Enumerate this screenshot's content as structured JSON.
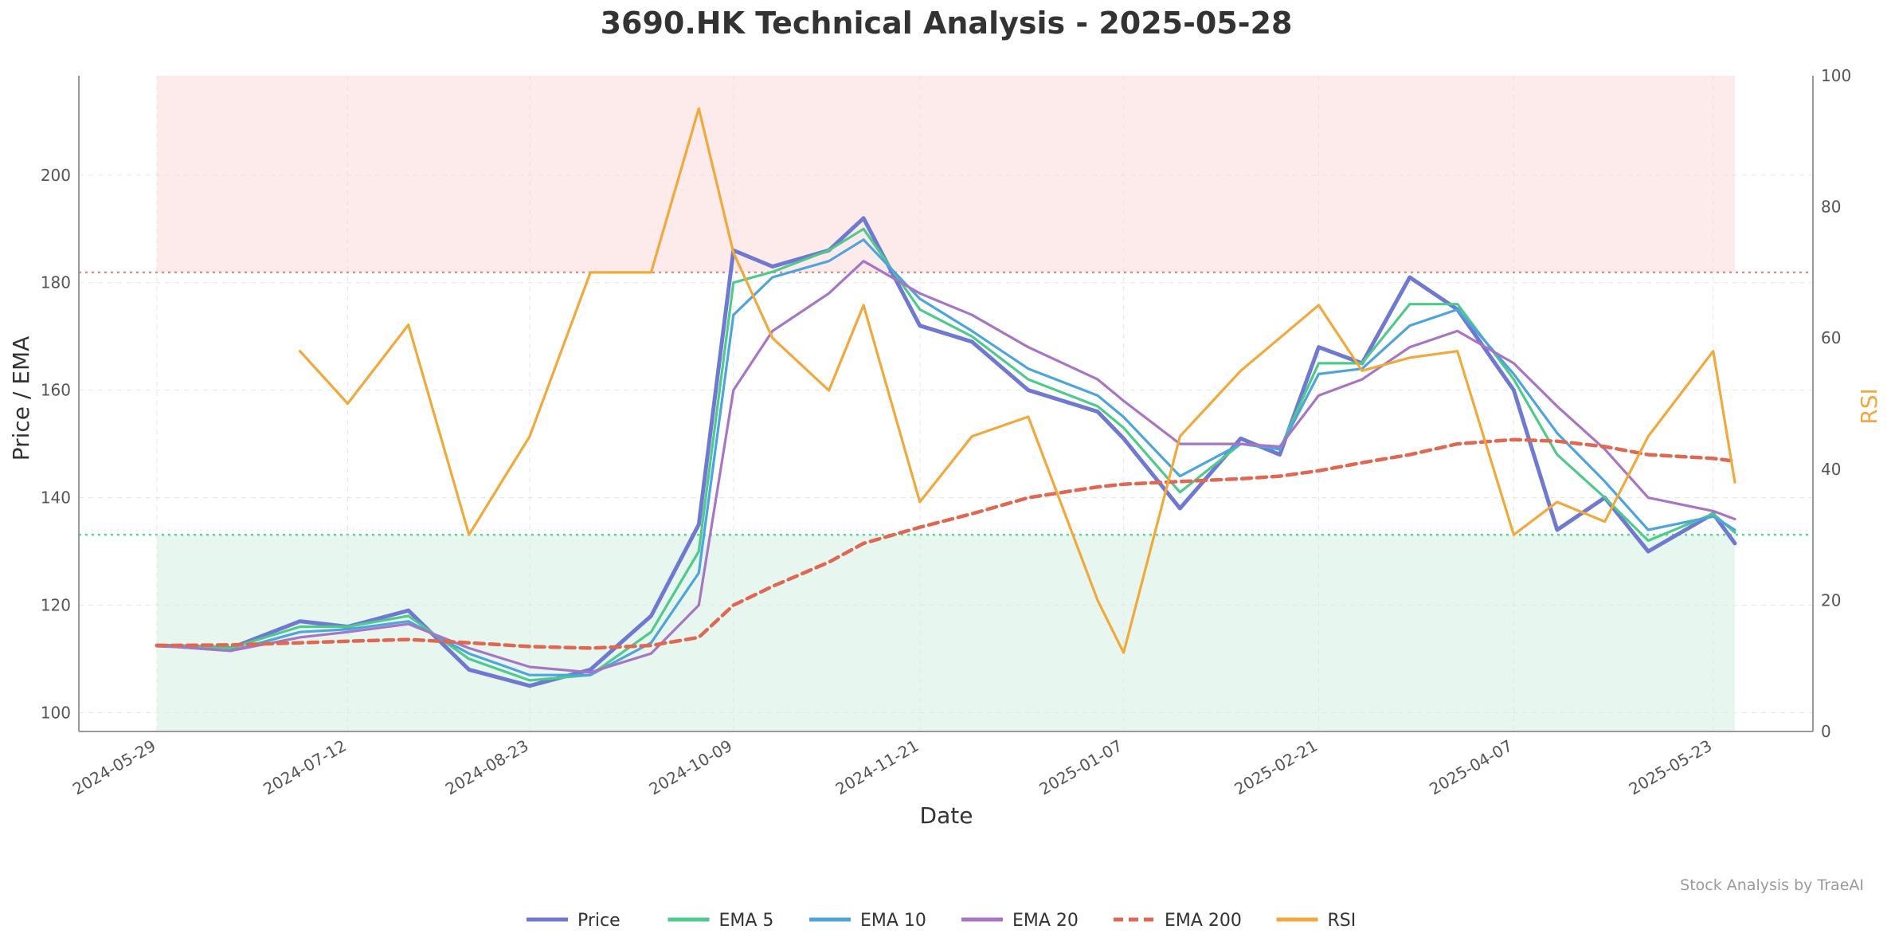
{
  "chart_data": {
    "type": "line",
    "title": "3690.HK Technical Analysis - 2025-05-28",
    "xlabel": "Date",
    "ylabel": "Price / EMA",
    "y2label": "RSI",
    "credit": "Stock Analysis by TraeAI",
    "x_ticks": [
      "2024-05-29",
      "2024-07-12",
      "2024-08-23",
      "2024-10-09",
      "2024-11-21",
      "2025-01-07",
      "2025-02-21",
      "2025-04-07",
      "2025-05-23"
    ],
    "y_ticks": [
      100,
      120,
      140,
      160,
      180,
      200
    ],
    "y2_ticks": [
      0,
      20,
      40,
      60,
      80,
      100
    ],
    "ylim": [
      96.5,
      218.5
    ],
    "y2lim": [
      0,
      100
    ],
    "rsi_overbought": 70,
    "rsi_oversold": 30,
    "grid": true,
    "legend_position": "bottom-center",
    "x": [
      "2024-05-29",
      "2024-06-15",
      "2024-07-01",
      "2024-07-12",
      "2024-07-26",
      "2024-08-09",
      "2024-08-23",
      "2024-09-06",
      "2024-09-20",
      "2024-10-01",
      "2024-10-09",
      "2024-10-18",
      "2024-10-31",
      "2024-11-08",
      "2024-11-21",
      "2024-12-03",
      "2024-12-16",
      "2025-01-01",
      "2025-01-07",
      "2025-01-20",
      "2025-02-03",
      "2025-02-12",
      "2025-02-21",
      "2025-03-03",
      "2025-03-14",
      "2025-03-25",
      "2025-04-07",
      "2025-04-17",
      "2025-04-28",
      "2025-05-08",
      "2025-05-23",
      "2025-05-28"
    ],
    "series": [
      {
        "name": "Price",
        "color": "#6f79d2",
        "dash": false,
        "axis": "left",
        "values": [
          112.5,
          112.0,
          117.0,
          116.0,
          119.0,
          108.0,
          105.0,
          108.0,
          118.0,
          135.0,
          186.0,
          183.0,
          186.0,
          192.0,
          172.0,
          169.0,
          160.0,
          156.0,
          151.0,
          138.0,
          151.0,
          148.0,
          168.0,
          165.0,
          181.0,
          175.0,
          160.0,
          134.0,
          140.0,
          130.0,
          137.0,
          131.5
        ]
      },
      {
        "name": "EMA 5",
        "color": "#4ecb8b",
        "dash": false,
        "axis": "left",
        "values": [
          112.5,
          112.0,
          116.0,
          116.0,
          118.0,
          110.0,
          106.0,
          107.0,
          115.0,
          130.0,
          180.0,
          182.0,
          186.0,
          190.0,
          175.0,
          170.0,
          162.0,
          157.0,
          153.0,
          141.0,
          150.0,
          149.0,
          165.0,
          165.0,
          176.0,
          176.0,
          162.0,
          148.0,
          140.0,
          132.0,
          137.0,
          133.5
        ]
      },
      {
        "name": "EMA 10",
        "color": "#4ea4dc",
        "dash": false,
        "axis": "left",
        "values": [
          112.5,
          111.5,
          115.0,
          115.5,
          117.0,
          111.0,
          107.0,
          107.0,
          113.0,
          126.0,
          174.0,
          181.0,
          184.0,
          188.0,
          177.0,
          171.0,
          164.0,
          159.0,
          155.0,
          144.0,
          150.0,
          149.0,
          163.0,
          164.0,
          172.0,
          175.0,
          163.0,
          152.0,
          143.0,
          134.0,
          136.5,
          134.0
        ]
      },
      {
        "name": "EMA 20",
        "color": "#a875c4",
        "dash": false,
        "axis": "left",
        "values": [
          112.5,
          111.5,
          114.0,
          115.0,
          116.5,
          112.0,
          108.5,
          107.5,
          111.0,
          120.0,
          160.0,
          171.0,
          178.0,
          184.0,
          178.0,
          174.0,
          168.0,
          162.0,
          158.0,
          150.0,
          150.0,
          149.5,
          159.0,
          162.0,
          168.0,
          171.0,
          165.0,
          157.0,
          149.0,
          140.0,
          137.5,
          136.0
        ]
      },
      {
        "name": "EMA 200",
        "color": "#e06852",
        "dash": true,
        "axis": "left",
        "values": [
          112.5,
          112.6,
          113.0,
          113.3,
          113.6,
          113.0,
          112.3,
          112.0,
          112.5,
          114.0,
          120.0,
          123.5,
          128.0,
          131.5,
          134.5,
          137.0,
          140.0,
          142.0,
          142.5,
          143.0,
          143.5,
          144.0,
          145.0,
          146.5,
          148.0,
          150.0,
          150.8,
          150.5,
          149.5,
          148.0,
          147.3,
          146.8
        ]
      },
      {
        "name": "RSI",
        "color": "#f0a93a",
        "dash": false,
        "axis": "right",
        "values": [
          null,
          null,
          58.0,
          50.0,
          62.0,
          30.0,
          45.0,
          70.0,
          70.0,
          95.0,
          73.0,
          60.0,
          52.0,
          65.0,
          35.0,
          45.0,
          48.0,
          20.0,
          12.0,
          45.0,
          55.0,
          60.0,
          65.0,
          55.0,
          57.0,
          58.0,
          30.0,
          35.0,
          32.0,
          45.0,
          58.0,
          38.0
        ]
      }
    ]
  }
}
